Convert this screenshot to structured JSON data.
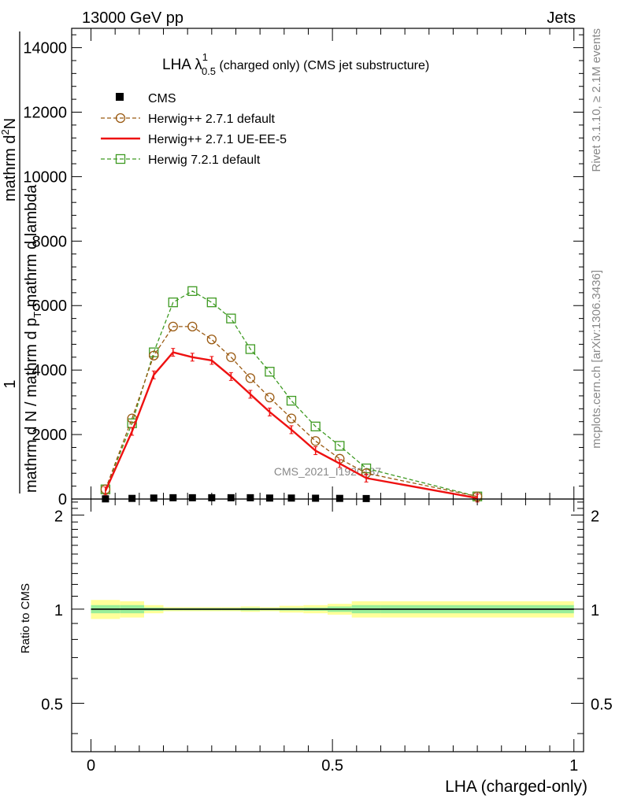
{
  "header": {
    "left": "13000 GeV pp",
    "right": "Jets"
  },
  "side_texts": {
    "rivet": "Rivet 3.1.10, ≥ 2.1M events",
    "mcplots": "mcplots.cern.ch [arXiv:1306.3436]"
  },
  "chart_data": [
    {
      "type": "line",
      "title_main": "LHA λ",
      "title_sup": "1",
      "title_sub": "0.5",
      "title_rest": " (charged only) (CMS jet substructure)",
      "watermark": "CMS_2021_I1920187",
      "ylabel_top": "1",
      "ylabel_bottom": "mathrm d N / mathrm d p",
      "ylabel_bottom_sub": "T",
      "ylabel_bottom_rest": " mathrm d lambda",
      "ylabel_frac_num": "mathrm d",
      "ylabel_frac_num_sup": "2",
      "ylabel_frac_num_rest": "N",
      "xlim": [
        -0.04,
        1.02
      ],
      "ylim": [
        0,
        14600
      ],
      "yticks": [
        0,
        2000,
        4000,
        6000,
        8000,
        10000,
        12000,
        14000
      ],
      "ytick_labels": [
        "0",
        "2000",
        "4000",
        "6000",
        "8000",
        "10000",
        "12000",
        "14000"
      ],
      "x": [
        0.03,
        0.085,
        0.13,
        0.17,
        0.21,
        0.25,
        0.29,
        0.33,
        0.37,
        0.415,
        0.465,
        0.515,
        0.57,
        0.8
      ],
      "series": [
        {
          "name": "CMS",
          "color": "#000000",
          "style": "points",
          "values": [
            5,
            20,
            30,
            40,
            40,
            40,
            40,
            40,
            30,
            30,
            25,
            20,
            15,
            5
          ]
        },
        {
          "name": "Herwig++ 2.7.1 default",
          "color": "#9a5a12",
          "style": "dashed-circle",
          "values": [
            300,
            2500,
            4450,
            5350,
            5350,
            4950,
            4400,
            3750,
            3150,
            2500,
            1800,
            1250,
            800,
            80
          ]
        },
        {
          "name": "Herwig++ 2.7.1 UE-EE-5",
          "color": "#ee1111",
          "style": "solid",
          "values": [
            250,
            2100,
            3850,
            4550,
            4400,
            4300,
            3800,
            3250,
            2700,
            2150,
            1500,
            1100,
            650,
            30
          ]
        },
        {
          "name": "Herwig 7.2.1 default",
          "color": "#3e9a22",
          "style": "dashed-square",
          "values": [
            300,
            2350,
            4550,
            6100,
            6450,
            6100,
            5600,
            4650,
            3950,
            3050,
            2250,
            1650,
            950,
            80
          ]
        }
      ]
    },
    {
      "type": "ratio",
      "ylabel": "Ratio to CMS",
      "xlabel": "LHA (charged-only)",
      "xlim": [
        -0.04,
        1.02
      ],
      "ylim": [
        0.35,
        2.25
      ],
      "yticks": [
        0.5,
        1,
        2
      ],
      "ytick_labels": [
        "0.5",
        "1",
        "2"
      ],
      "xticks": [
        0,
        0.5,
        1
      ],
      "xtick_labels": [
        "0",
        "0.5",
        "1"
      ],
      "bins": [
        0,
        0.06,
        0.11,
        0.15,
        0.19,
        0.23,
        0.27,
        0.31,
        0.35,
        0.39,
        0.44,
        0.49,
        0.54,
        0.6,
        1.0
      ],
      "band_inner": [
        0.03,
        0.03,
        0.012,
        0.008,
        0.008,
        0.008,
        0.008,
        0.01,
        0.008,
        0.01,
        0.012,
        0.02,
        0.03,
        0.03
      ],
      "band_outer": [
        0.07,
        0.06,
        0.03,
        0.015,
        0.015,
        0.015,
        0.015,
        0.02,
        0.015,
        0.025,
        0.03,
        0.04,
        0.06,
        0.06
      ]
    }
  ]
}
